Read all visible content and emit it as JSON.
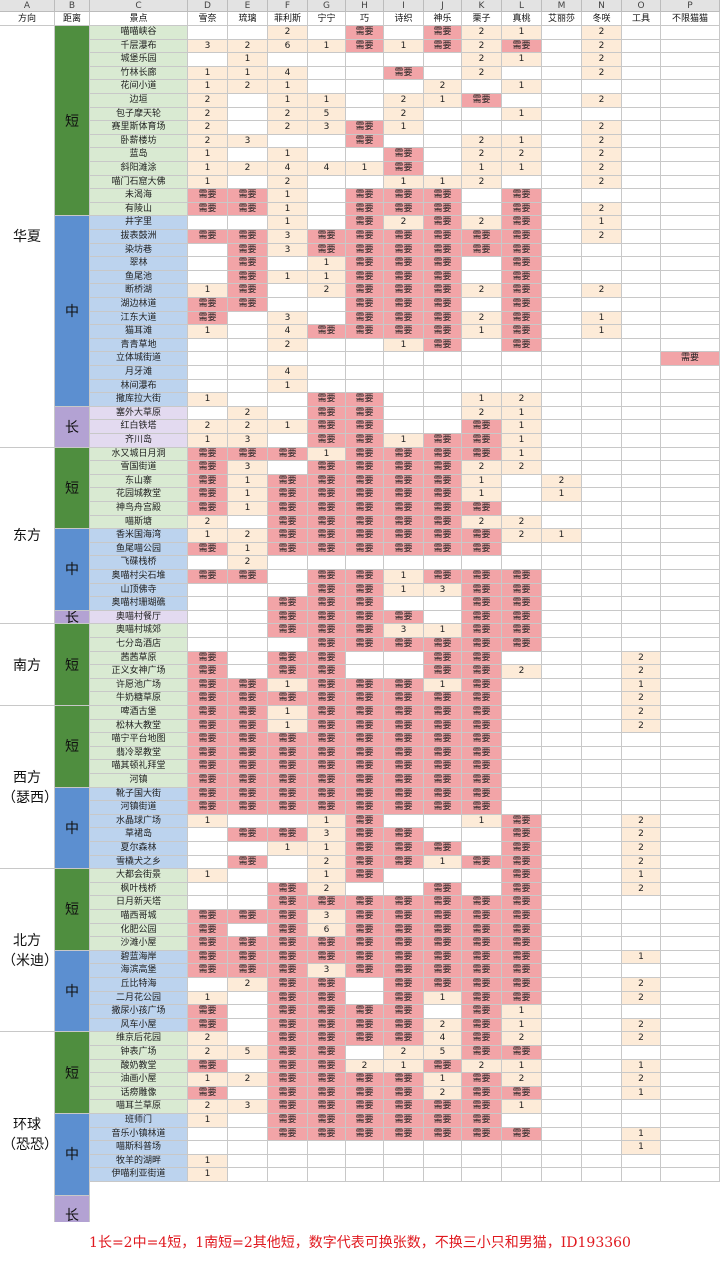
{
  "column_letters": [
    "A",
    "B",
    "C",
    "D",
    "E",
    "F",
    "G",
    "H",
    "I",
    "J",
    "K",
    "L",
    "M",
    "N",
    "O",
    "P"
  ],
  "column_headers": [
    "方向",
    "距离",
    "景点",
    "雪奈",
    "琉璃",
    "菲利斯",
    "宁宁",
    "巧",
    "诗织",
    "神乐",
    "栗子",
    "真桃",
    "艾丽莎",
    "冬咲",
    "工具",
    "不限猫猫"
  ],
  "colors": {
    "short": "#4f8e3f",
    "mid": "#5c8fd0",
    "long": "#b3a2d3",
    "sight_short": "#d9ead2",
    "sight_mid": "#bcd3ee",
    "sight_long": "#e3daf0",
    "needed": "#f2a4a7",
    "count": "#fdebd8",
    "footer": "#e0191f"
  },
  "regions": [
    {
      "name": "华夏",
      "distance": [
        {
          "label": "短",
          "count": 14
        },
        {
          "label": "中",
          "count": 14
        },
        {
          "label": "长",
          "count": 3
        }
      ]
    },
    {
      "name": "东方",
      "distance": [
        {
          "label": "短",
          "count": 6
        },
        {
          "label": "中",
          "count": 6
        },
        {
          "label": "长",
          "count": 1
        }
      ]
    },
    {
      "name": "南方",
      "distance": [
        {
          "label": "短",
          "count": 6
        }
      ]
    },
    {
      "name": "西方（瑟西）",
      "distance": [
        {
          "label": "短",
          "count": 6
        },
        {
          "label": "中",
          "count": 6
        }
      ]
    },
    {
      "name": "北方（米迪）",
      "distance": [
        {
          "label": "短",
          "count": 6
        },
        {
          "label": "中",
          "count": 6
        }
      ]
    },
    {
      "name": "环球（恐恐）",
      "distance": [
        {
          "label": "短",
          "count": 6
        },
        {
          "label": "中",
          "count": 6
        },
        {
          "label": "长",
          "count": 3
        }
      ]
    }
  ],
  "rows": [
    [
      "喵喵峡谷",
      "",
      "",
      "2",
      "",
      "需要",
      "",
      "需要",
      "2",
      "1",
      "",
      "2",
      "",
      ""
    ],
    [
      "千层瀑布",
      "3",
      "2",
      "6",
      "1",
      "需要",
      "1",
      "需要",
      "2",
      "需要",
      "",
      "2",
      "",
      ""
    ],
    [
      "城堡乐园",
      "",
      "1",
      "",
      "",
      "",
      "",
      "",
      "2",
      "1",
      "",
      "2",
      "",
      ""
    ],
    [
      "竹林长廊",
      "1",
      "1",
      "4",
      "",
      "",
      "需要",
      "",
      "2",
      "",
      "",
      "2",
      "",
      ""
    ],
    [
      "花间小道",
      "1",
      "2",
      "1",
      "",
      "",
      "",
      "2",
      "",
      "1",
      "",
      "",
      "",
      ""
    ],
    [
      "边垣",
      "2",
      "",
      "1",
      "1",
      "",
      "2",
      "1",
      "需要",
      "",
      "",
      "2",
      "",
      ""
    ],
    [
      "包子摩天轮",
      "2",
      "",
      "2",
      "5",
      "",
      "2",
      "",
      "",
      "1",
      "",
      "",
      "",
      ""
    ],
    [
      "赛里斯体育场",
      "2",
      "",
      "2",
      "3",
      "需要",
      "1",
      "",
      "",
      "",
      "",
      "2",
      "",
      ""
    ],
    [
      "卧薪楼坊",
      "2",
      "3",
      "",
      "",
      "需要",
      "",
      "",
      "2",
      "1",
      "",
      "2",
      "",
      ""
    ],
    [
      "蓝岛",
      "1",
      "",
      "1",
      "",
      "",
      "需要",
      "",
      "2",
      "2",
      "",
      "2",
      "",
      ""
    ],
    [
      "斜阳滩涂",
      "1",
      "2",
      "4",
      "4",
      "1",
      "需要",
      "",
      "1",
      "1",
      "",
      "2",
      "",
      ""
    ],
    [
      "喵门石窟大佛",
      "1",
      "",
      "2",
      "",
      "",
      "1",
      "1",
      "2",
      "",
      "",
      "2",
      "",
      ""
    ],
    [
      "未渴海",
      "需要",
      "需要",
      "1",
      "",
      "需要",
      "需要",
      "需要",
      "",
      "需要",
      "",
      "",
      "",
      ""
    ],
    [
      "有陵山",
      "需要",
      "需要",
      "1",
      "",
      "需要",
      "需要",
      "需要",
      "",
      "需要",
      "",
      "2",
      "",
      ""
    ],
    [
      "井字里",
      "",
      "",
      "1",
      "",
      "需要",
      "2",
      "需要",
      "2",
      "需要",
      "",
      "1",
      "",
      ""
    ],
    [
      "拔表鼓洲",
      "需要",
      "需要",
      "3",
      "需要",
      "需要",
      "需要",
      "需要",
      "需要",
      "需要",
      "",
      "2",
      "",
      ""
    ],
    [
      "染坊巷",
      "",
      "需要",
      "3",
      "需要",
      "需要",
      "需要",
      "需要",
      "需要",
      "需要",
      "",
      "",
      "",
      ""
    ],
    [
      "翠林",
      "",
      "需要",
      "",
      "1",
      "需要",
      "需要",
      "需要",
      "",
      "需要",
      "",
      "",
      "",
      ""
    ],
    [
      "鱼尾池",
      "",
      "需要",
      "1",
      "1",
      "需要",
      "需要",
      "需要",
      "",
      "需要",
      "",
      "",
      "",
      ""
    ],
    [
      "断桥湖",
      "1",
      "需要",
      "",
      "2",
      "需要",
      "需要",
      "需要",
      "2",
      "需要",
      "",
      "2",
      "",
      ""
    ],
    [
      "湖边林道",
      "需要",
      "需要",
      "",
      "",
      "需要",
      "需要",
      "需要",
      "",
      "需要",
      "",
      "",
      "",
      ""
    ],
    [
      "江东大道",
      "需要",
      "",
      "3",
      "",
      "需要",
      "需要",
      "需要",
      "2",
      "需要",
      "",
      "1",
      "",
      ""
    ],
    [
      "猫耳滩",
      "1",
      "",
      "4",
      "需要",
      "需要",
      "需要",
      "需要",
      "1",
      "需要",
      "",
      "1",
      "",
      ""
    ],
    [
      "青青草地",
      "",
      "",
      "2",
      "",
      "",
      "1",
      "需要",
      "",
      "需要",
      "",
      "",
      "",
      ""
    ],
    [
      "立体城街道",
      "",
      "",
      "",
      "",
      "",
      "",
      "",
      "",
      "",
      "",
      "",
      "",
      "需要"
    ],
    [
      "月牙滩",
      "",
      "",
      "4",
      "",
      "",
      "",
      "",
      "",
      "",
      "",
      "",
      "",
      ""
    ],
    [
      "林间瀑布",
      "",
      "",
      "1",
      "",
      "",
      "",
      "",
      "",
      "",
      "",
      "",
      "",
      ""
    ],
    [
      "撒库拉大街",
      "1",
      "",
      "",
      "需要",
      "需要",
      "",
      "",
      "1",
      "2",
      "",
      "",
      "",
      ""
    ],
    [
      "塞外大草原",
      "",
      "2",
      "",
      "需要",
      "需要",
      "",
      "",
      "2",
      "1",
      "",
      "",
      "",
      ""
    ],
    [
      "红白铁塔",
      "2",
      "2",
      "1",
      "需要",
      "需要",
      "",
      "",
      "需要",
      "1",
      "",
      "",
      "",
      ""
    ],
    [
      "齐川岛",
      "1",
      "3",
      "",
      "需要",
      "需要",
      "1",
      "需要",
      "需要",
      "1",
      "",
      "",
      "",
      ""
    ],
    [
      "水又城日月洞",
      "需要",
      "需要",
      "需要",
      "1",
      "需要",
      "需要",
      "需要",
      "需要",
      "1",
      "",
      "",
      "",
      ""
    ],
    [
      "雪国街道",
      "需要",
      "3",
      "",
      "需要",
      "需要",
      "需要",
      "需要",
      "2",
      "2",
      "",
      "",
      "",
      ""
    ],
    [
      "东山寨",
      "需要",
      "1",
      "需要",
      "需要",
      "需要",
      "需要",
      "需要",
      "1",
      "",
      "2",
      "",
      "",
      ""
    ],
    [
      "花园城教堂",
      "需要",
      "1",
      "需要",
      "需要",
      "需要",
      "需要",
      "需要",
      "1",
      "",
      "1",
      "",
      "",
      ""
    ],
    [
      "神鸟舟宫殿",
      "需要",
      "1",
      "需要",
      "需要",
      "需要",
      "需要",
      "需要",
      "需要",
      "",
      "",
      "",
      "",
      ""
    ],
    [
      "喵斯塘",
      "2",
      "",
      "需要",
      "需要",
      "需要",
      "需要",
      "需要",
      "2",
      "2",
      "",
      "",
      "",
      ""
    ],
    [
      "香米国海湾",
      "1",
      "2",
      "需要",
      "需要",
      "需要",
      "需要",
      "需要",
      "需要",
      "2",
      "1",
      "",
      "",
      ""
    ],
    [
      "鱼尾喵公园",
      "需要",
      "1",
      "需要",
      "需要",
      "需要",
      "需要",
      "需要",
      "需要",
      "",
      "",
      "",
      "",
      ""
    ],
    [
      "飞碟栈桥",
      "",
      "2",
      "",
      "",
      "",
      "",
      "",
      "",
      "",
      "",
      "",
      "",
      ""
    ],
    [
      "奥喵村尖石堆",
      "需要",
      "需要",
      "",
      "需要",
      "需要",
      "1",
      "需要",
      "需要",
      "需要",
      "",
      "",
      "",
      ""
    ],
    [
      "山顶佛寺",
      "",
      "",
      "",
      "需要",
      "需要",
      "1",
      "3",
      "需要",
      "需要",
      "",
      "",
      "",
      ""
    ],
    [
      "奥喵村珊瑚礁",
      "",
      "",
      "需要",
      "需要",
      "需要",
      "",
      "",
      "需要",
      "需要",
      "",
      "",
      "",
      ""
    ],
    [
      "奥喵村餐厅",
      "",
      "",
      "需要",
      "需要",
      "需要",
      "需要",
      "",
      "需要",
      "需要",
      "",
      "",
      "",
      ""
    ],
    [
      "奥喵村城郊",
      "",
      "",
      "需要",
      "需要",
      "需要",
      "3",
      "1",
      "需要",
      "需要",
      "",
      "",
      "",
      ""
    ],
    [
      "七分岛酒店",
      "",
      "",
      "",
      "需要",
      "需要",
      "需要",
      "需要",
      "需要",
      "需要",
      "",
      "",
      "",
      ""
    ],
    [
      "茜茜草原",
      "需要",
      "",
      "需要",
      "需要",
      "",
      "",
      "需要",
      "需要",
      "",
      "",
      "",
      "2",
      ""
    ],
    [
      "正义女神广场",
      "需要",
      "",
      "需要",
      "需要",
      "",
      "",
      "需要",
      "需要",
      "2",
      "",
      "",
      "2",
      ""
    ],
    [
      "许愿池广场",
      "需要",
      "需要",
      "1",
      "需要",
      "需要",
      "需要",
      "1",
      "需要",
      "",
      "",
      "",
      "1",
      ""
    ],
    [
      "牛奶糖草原",
      "需要",
      "需要",
      "需要",
      "需要",
      "需要",
      "需要",
      "需要",
      "需要",
      "",
      "",
      "",
      "2",
      ""
    ],
    [
      "啤酒古堡",
      "需要",
      "需要",
      "1",
      "需要",
      "需要",
      "需要",
      "需要",
      "需要",
      "",
      "",
      "",
      "2",
      ""
    ],
    [
      "松林大教堂",
      "需要",
      "需要",
      "1",
      "需要",
      "需要",
      "需要",
      "需要",
      "需要",
      "",
      "",
      "",
      "2",
      ""
    ],
    [
      "喵宁平台地图",
      "需要",
      "需要",
      "需要",
      "需要",
      "需要",
      "需要",
      "需要",
      "需要",
      "",
      "",
      "",
      "",
      ""
    ],
    [
      "翡冷翠教堂",
      "需要",
      "需要",
      "需要",
      "需要",
      "需要",
      "需要",
      "需要",
      "需要",
      "",
      "",
      "",
      "",
      ""
    ],
    [
      "喵其顿礼拜堂",
      "需要",
      "需要",
      "需要",
      "需要",
      "需要",
      "需要",
      "需要",
      "需要",
      "",
      "",
      "",
      "",
      ""
    ],
    [
      "河镇",
      "需要",
      "需要",
      "需要",
      "需要",
      "需要",
      "需要",
      "需要",
      "需要",
      "",
      "",
      "",
      "",
      ""
    ],
    [
      "靴子国大街",
      "需要",
      "需要",
      "需要",
      "需要",
      "需要",
      "需要",
      "需要",
      "需要",
      "",
      "",
      "",
      "",
      ""
    ],
    [
      "河镇街道",
      "需要",
      "需要",
      "需要",
      "需要",
      "需要",
      "需要",
      "需要",
      "需要",
      "",
      "",
      "",
      "",
      ""
    ],
    [
      "水晶球广场",
      "1",
      "",
      "",
      "1",
      "需要",
      "",
      "",
      "1",
      "需要",
      "",
      "",
      "2",
      ""
    ],
    [
      "草裙岛",
      "",
      "需要",
      "需要",
      "3",
      "需要",
      "需要",
      "",
      "",
      "需要",
      "",
      "",
      "2",
      ""
    ],
    [
      "夏尔森林",
      "",
      "",
      "1",
      "1",
      "需要",
      "需要",
      "需要",
      "",
      "需要",
      "",
      "",
      "2",
      ""
    ],
    [
      "雪橇犬之乡",
      "",
      "需要",
      "",
      "2",
      "需要",
      "需要",
      "1",
      "需要",
      "需要",
      "",
      "",
      "2",
      ""
    ],
    [
      "大都会街景",
      "1",
      "",
      "",
      "1",
      "需要",
      "",
      "",
      "",
      "需要",
      "",
      "",
      "1",
      ""
    ],
    [
      "枫叶栈桥",
      "",
      "",
      "需要",
      "2",
      "",
      "",
      "需要",
      "",
      "需要",
      "",
      "",
      "2",
      ""
    ],
    [
      "日月新天塔",
      "",
      "",
      "需要",
      "需要",
      "需要",
      "需要",
      "需要",
      "需要",
      "需要",
      "",
      "",
      "",
      ""
    ],
    [
      "喵西哥城",
      "需要",
      "需要",
      "需要",
      "3",
      "需要",
      "需要",
      "需要",
      "需要",
      "需要",
      "",
      "",
      "",
      ""
    ],
    [
      "化肥公园",
      "需要",
      "",
      "需要",
      "6",
      "需要",
      "需要",
      "需要",
      "需要",
      "需要",
      "",
      "",
      "",
      ""
    ],
    [
      "沙滩小屋",
      "需要",
      "需要",
      "需要",
      "需要",
      "需要",
      "需要",
      "需要",
      "需要",
      "需要",
      "",
      "",
      "",
      ""
    ],
    [
      "碧蓝海岸",
      "需要",
      "需要",
      "需要",
      "需要",
      "需要",
      "需要",
      "需要",
      "需要",
      "需要",
      "",
      "",
      "1",
      ""
    ],
    [
      "海滨高堡",
      "需要",
      "需要",
      "需要",
      "3",
      "需要",
      "需要",
      "需要",
      "需要",
      "需要",
      "",
      "",
      "",
      ""
    ],
    [
      "丘比特海",
      "",
      "2",
      "需要",
      "需要",
      "",
      "需要",
      "需要",
      "需要",
      "需要",
      "",
      "",
      "2",
      ""
    ],
    [
      "二月花公园",
      "1",
      "",
      "需要",
      "需要",
      "",
      "需要",
      "1",
      "需要",
      "需要",
      "",
      "",
      "2",
      ""
    ],
    [
      "撒尿小孩广场",
      "需要",
      "",
      "需要",
      "需要",
      "需要",
      "需要",
      "",
      "需要",
      "1",
      "",
      "",
      "",
      ""
    ],
    [
      "风车小屋",
      "需要",
      "",
      "需要",
      "需要",
      "需要",
      "需要",
      "2",
      "需要",
      "1",
      "",
      "",
      "2",
      ""
    ],
    [
      "维京后花园",
      "2",
      "",
      "需要",
      "需要",
      "需要",
      "需要",
      "4",
      "需要",
      "2",
      "",
      "",
      "2",
      ""
    ],
    [
      "钟表广场",
      "2",
      "5",
      "需要",
      "需要",
      "",
      "2",
      "5",
      "需要",
      "需要",
      "",
      "",
      "",
      ""
    ],
    [
      "酸奶教堂",
      "需要",
      "",
      "需要",
      "需要",
      "2",
      "1",
      "需要",
      "2",
      "1",
      "",
      "",
      "1",
      ""
    ],
    [
      "油画小屋",
      "1",
      "2",
      "需要",
      "需要",
      "需要",
      "需要",
      "1",
      "需要",
      "2",
      "",
      "",
      "2",
      ""
    ],
    [
      "话痨雕像",
      "需要",
      "",
      "需要",
      "需要",
      "需要",
      "需要",
      "2",
      "需要",
      "需要",
      "",
      "",
      "1",
      ""
    ],
    [
      "喵耳兰草原",
      "2",
      "3",
      "需要",
      "需要",
      "需要",
      "需要",
      "需要",
      "需要",
      "1",
      "",
      "",
      "",
      ""
    ],
    [
      "班师门",
      "1",
      "",
      "需要",
      "需要",
      "需要",
      "需要",
      "需要",
      "需要",
      "",
      "",
      "",
      "",
      ""
    ],
    [
      "音乐小镇林道",
      "",
      "",
      "需要",
      "需要",
      "需要",
      "需要",
      "需要",
      "需要",
      "需要",
      "",
      "",
      "1",
      ""
    ],
    [
      "喵斯科普场",
      "",
      "",
      "",
      "",
      "",
      "",
      "",
      "",
      "",
      "",
      "",
      "1",
      ""
    ],
    [
      "牧羊的湖畔",
      "1",
      "",
      "",
      "",
      "",
      "",
      "",
      "",
      "",
      "",
      "",
      "",
      ""
    ],
    [
      "伊喵利亚街道",
      "1",
      "",
      "",
      "",
      "",
      "",
      "",
      "",
      "",
      "",
      "",
      "",
      ""
    ]
  ],
  "footer": "1长=2中=4短，1南短=2其他短，数字代表可换张数，不换三小只和男猫，ID193360"
}
